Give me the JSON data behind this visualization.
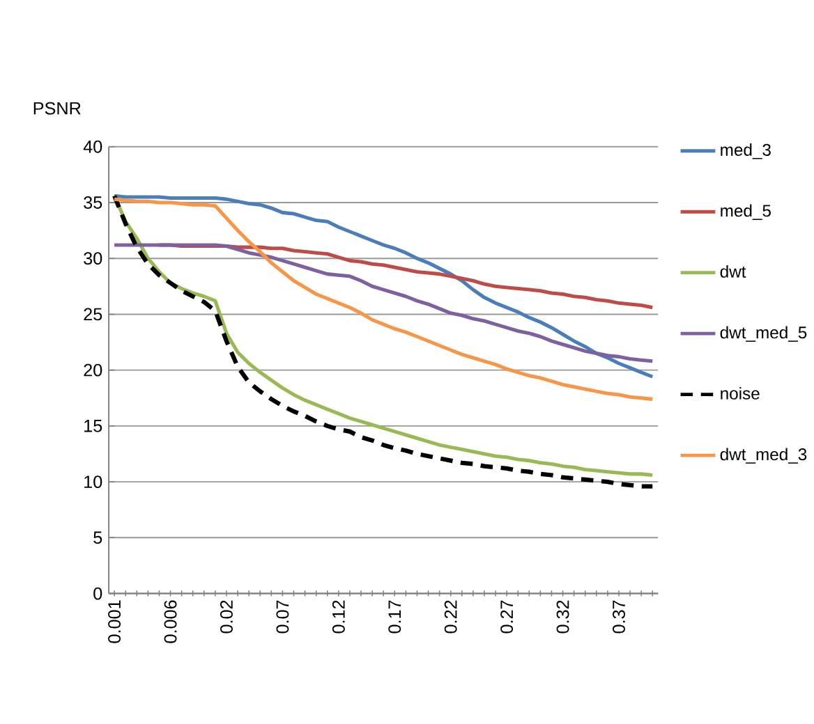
{
  "chart_data": {
    "type": "line",
    "title": "PSNR",
    "categories": [
      "0.001",
      null,
      null,
      null,
      null,
      "0.006",
      null,
      null,
      null,
      null,
      "0.02",
      null,
      null,
      null,
      null,
      "0.07",
      null,
      null,
      null,
      null,
      "0.12",
      null,
      null,
      null,
      null,
      "0.17",
      null,
      null,
      null,
      null,
      "0.22",
      null,
      null,
      null,
      null,
      "0.27",
      null,
      null,
      null,
      null,
      "0.32",
      null,
      null,
      null,
      null,
      "0.37",
      null,
      null,
      null
    ],
    "series": [
      {
        "name": "med_3",
        "color": "#4a7ebb",
        "values": [
          35.6,
          35.5,
          35.5,
          35.5,
          35.5,
          35.4,
          35.4,
          35.4,
          35.4,
          35.4,
          35.3,
          35.1,
          34.9,
          34.8,
          34.5,
          34.1,
          34.0,
          33.7,
          33.4,
          33.3,
          32.8,
          32.4,
          32.0,
          31.6,
          31.2,
          30.9,
          30.5,
          30.0,
          29.6,
          29.1,
          28.6,
          28.0,
          27.2,
          26.5,
          26.0,
          25.6,
          25.2,
          24.7,
          24.3,
          23.8,
          23.2,
          22.6,
          22.1,
          21.5,
          21.1,
          20.6,
          20.2,
          19.8,
          19.4
        ]
      },
      {
        "name": "med_5",
        "color": "#be4b48",
        "values": [
          null,
          null,
          null,
          null,
          31.2,
          31.2,
          31.1,
          31.1,
          31.1,
          31.1,
          31.1,
          31.0,
          31.0,
          31.0,
          30.9,
          30.9,
          30.7,
          30.6,
          30.5,
          30.4,
          30.1,
          29.8,
          29.7,
          29.5,
          29.4,
          29.2,
          29.0,
          28.8,
          28.7,
          28.6,
          28.4,
          28.2,
          28.0,
          27.7,
          27.5,
          27.4,
          27.3,
          27.2,
          27.1,
          26.9,
          26.8,
          26.6,
          26.5,
          26.3,
          26.2,
          26.0,
          25.9,
          25.8,
          25.6
        ]
      },
      {
        "name": "dwt",
        "color": "#98b954",
        "values": [
          35.6,
          33.3,
          31.8,
          30.0,
          28.8,
          27.8,
          27.3,
          26.9,
          26.6,
          26.2,
          23.3,
          21.6,
          20.6,
          19.8,
          19.1,
          18.4,
          17.8,
          17.3,
          16.9,
          16.5,
          16.1,
          15.7,
          15.4,
          15.1,
          14.8,
          14.5,
          14.2,
          13.9,
          13.6,
          13.3,
          13.1,
          12.9,
          12.7,
          12.5,
          12.3,
          12.2,
          12.0,
          11.9,
          11.7,
          11.6,
          11.4,
          11.3,
          11.1,
          11.0,
          10.9,
          10.8,
          10.7,
          10.7,
          10.6
        ]
      },
      {
        "name": "dwt_med_5",
        "color": "#7d60a0",
        "values": [
          31.2,
          31.2,
          31.2,
          31.2,
          31.2,
          31.2,
          31.2,
          31.2,
          31.2,
          31.2,
          31.1,
          30.8,
          30.5,
          30.3,
          30.1,
          29.8,
          29.5,
          29.2,
          28.9,
          28.6,
          28.5,
          28.4,
          28.0,
          27.5,
          27.2,
          26.9,
          26.6,
          26.2,
          25.9,
          25.5,
          25.1,
          24.9,
          24.6,
          24.4,
          24.1,
          23.8,
          23.5,
          23.3,
          23.0,
          22.6,
          22.3,
          22.0,
          21.7,
          21.5,
          21.3,
          21.2,
          21.0,
          20.9,
          20.8
        ]
      },
      {
        "name": "noise",
        "color": "#000000",
        "line_style": "dashed",
        "values": [
          35.6,
          33.1,
          31.0,
          29.5,
          28.5,
          27.8,
          27.1,
          26.6,
          26.1,
          25.3,
          22.6,
          20.3,
          18.9,
          18.1,
          17.4,
          16.8,
          16.3,
          15.9,
          15.4,
          15.0,
          14.7,
          14.5,
          14.0,
          13.7,
          13.3,
          13.0,
          12.8,
          12.5,
          12.3,
          12.1,
          11.9,
          11.7,
          11.6,
          11.4,
          11.3,
          11.2,
          11.0,
          10.9,
          10.7,
          10.6,
          10.4,
          10.3,
          10.2,
          10.1,
          10.0,
          9.8,
          9.7,
          9.6,
          9.6
        ]
      },
      {
        "name": "dwt_med_3",
        "color": "#f79646",
        "values": [
          35.3,
          35.2,
          35.1,
          35.1,
          35.0,
          35.0,
          34.9,
          34.8,
          34.8,
          34.7,
          33.6,
          32.5,
          31.5,
          30.6,
          29.6,
          28.8,
          28.0,
          27.4,
          26.8,
          26.4,
          26.0,
          25.6,
          25.1,
          24.5,
          24.1,
          23.7,
          23.4,
          23.0,
          22.6,
          22.2,
          21.8,
          21.4,
          21.1,
          20.8,
          20.5,
          20.1,
          19.8,
          19.5,
          19.3,
          19.0,
          18.7,
          18.5,
          18.3,
          18.1,
          17.9,
          17.8,
          17.6,
          17.5,
          17.4
        ]
      }
    ],
    "ylim": [
      0,
      40
    ],
    "yticks": [
      0,
      5,
      10,
      15,
      20,
      25,
      30,
      35,
      40
    ],
    "grid": "y",
    "legend": "right",
    "marker": "none",
    "line_style": "solid"
  }
}
